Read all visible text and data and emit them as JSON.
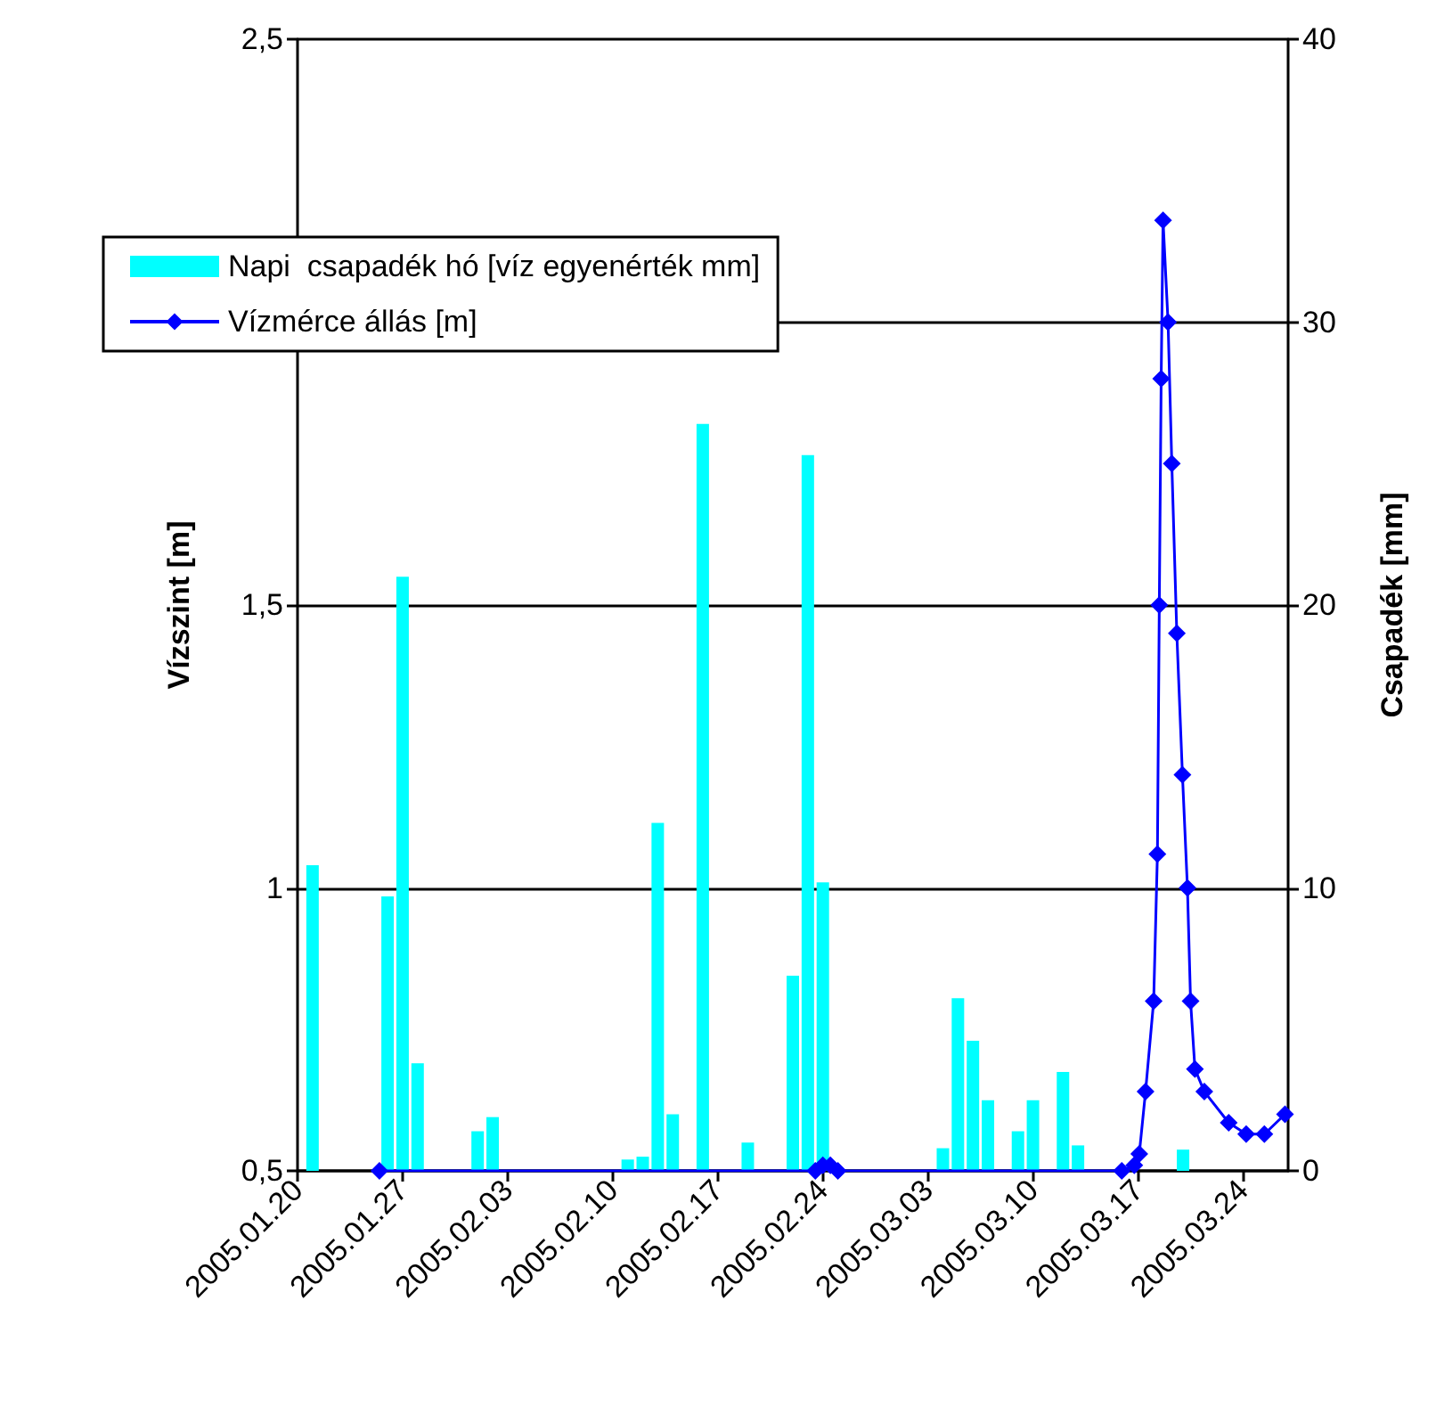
{
  "chart_data": {
    "type": "bar",
    "ylabel": "Vízszint [m]",
    "y2label": "Csapadék [mm]",
    "xlim": [
      "2005-01-20",
      "2005-03-27"
    ],
    "xticks": [
      {
        "value": "2005-01-20",
        "label": "2005.01.20"
      },
      {
        "value": "2005-01-27",
        "label": "2005.01.27"
      },
      {
        "value": "2005-02-03",
        "label": "2005.02.03"
      },
      {
        "value": "2005-02-10",
        "label": "2005.02.10"
      },
      {
        "value": "2005-02-17",
        "label": "2005.02.17"
      },
      {
        "value": "2005-02-24",
        "label": "2005.02.24"
      },
      {
        "value": "2005-03-03",
        "label": "2005.03.03"
      },
      {
        "value": "2005-03-10",
        "label": "2005.03.10"
      },
      {
        "value": "2005-03-17",
        "label": "2005.03.17"
      },
      {
        "value": "2005-03-24",
        "label": "2005.03.24"
      }
    ],
    "ylim": [
      0.5,
      2.5
    ],
    "yticks": [
      {
        "value": 0.5,
        "label": "0,5"
      },
      1,
      {
        "value": 1.5,
        "label": "1,5"
      },
      {
        "value": 2,
        "label": null
      },
      {
        "value": 2.5,
        "label": "2,5"
      }
    ],
    "y2lim": [
      0,
      40
    ],
    "y2ticks": [
      0,
      10,
      20,
      30,
      40
    ],
    "grid": "y",
    "legend": "top left",
    "marker": "diamond",
    "series": [
      {
        "name": "Napi  csapadék hó [víz egyenérték mm]",
        "axis": "y2",
        "color": "#00ffff",
        "x": [
          "2005-01-21",
          "2005-01-26",
          "2005-01-27",
          "2005-01-28",
          "2005-02-01",
          "2005-02-02",
          "2005-02-11",
          "2005-02-12",
          "2005-02-13",
          "2005-02-14",
          "2005-02-16",
          "2005-02-19",
          "2005-02-22",
          "2005-02-23",
          "2005-02-24",
          "2005-03-04",
          "2005-03-05",
          "2005-03-06",
          "2005-03-07",
          "2005-03-09",
          "2005-03-10",
          "2005-03-12",
          "2005-03-13",
          "2005-03-20"
        ],
        "values": [
          10.8,
          9.7,
          21,
          3.8,
          1.4,
          1.9,
          0.4,
          0.5,
          12.3,
          2,
          26.4,
          1,
          6.9,
          25.3,
          10.2,
          0.8,
          6.1,
          4.6,
          2.5,
          1.4,
          2.5,
          3.5,
          0.9,
          0.75
        ]
      },
      {
        "name": "Vízmérce állás [m]",
        "type": "line",
        "color": "#0000ff",
        "x": [
          "2005-01-25T11:00",
          "2005-02-23T12:00",
          "2005-02-24T00:00",
          "2005-02-24T12:00",
          "2005-02-25T00:00",
          "2005-03-15T22:00",
          "2005-03-16T18:00",
          "2005-03-17T02:00",
          "2005-03-17T12:00",
          "2005-03-18T01:00",
          "2005-03-18T07:00",
          "2005-03-18T10:00",
          "2005-03-18T13:00",
          "2005-03-18T16:00",
          "2005-03-19T00:00",
          "2005-03-19T06:00",
          "2005-03-19T14:00",
          "2005-03-19T23:00",
          "2005-03-20T07:00",
          "2005-03-20T12:00",
          "2005-03-20T19:00",
          "2005-03-21T10:00",
          "2005-03-23T01:00",
          "2005-03-24T05:00",
          "2005-03-25T10:00",
          "2005-03-26T19:00"
        ],
        "values": [
          0.5,
          0.5,
          0.51,
          0.51,
          0.5,
          0.5,
          0.51,
          0.53,
          0.64,
          0.8,
          1.06,
          1.5,
          1.9,
          2.18,
          2.0,
          1.75,
          1.45,
          1.2,
          1.0,
          0.8,
          0.68,
          0.64,
          0.585,
          0.565,
          0.565,
          0.6
        ]
      }
    ]
  }
}
